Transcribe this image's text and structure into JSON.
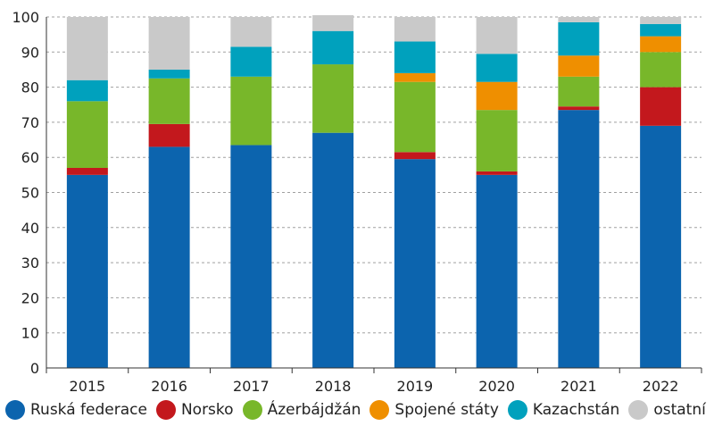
{
  "chart_data": {
    "type": "bar",
    "stacked": true,
    "categories": [
      "2015",
      "2016",
      "2017",
      "2018",
      "2019",
      "2020",
      "2021",
      "2022"
    ],
    "ylim": [
      0,
      100
    ],
    "yticks": [
      0,
      10,
      20,
      30,
      40,
      50,
      60,
      70,
      80,
      90,
      100
    ],
    "grid": "horizontal-dashed",
    "legend_position": "bottom",
    "series": [
      {
        "name": "Ruská federace",
        "color": "#0c64ae",
        "values": [
          55,
          63,
          63.5,
          67,
          59.5,
          55,
          73.5,
          69
        ]
      },
      {
        "name": "Norsko",
        "color": "#c3181d",
        "values": [
          2,
          6.5,
          0,
          0,
          2,
          1,
          1,
          11
        ]
      },
      {
        "name": "Ázerbájdžán",
        "color": "#78b72a",
        "values": [
          19,
          13,
          19.5,
          19.5,
          20,
          17.5,
          8.5,
          10
        ]
      },
      {
        "name": "Spojené státy",
        "color": "#ef8f00",
        "values": [
          0,
          0,
          0,
          0,
          2.5,
          8,
          6,
          4.5
        ]
      },
      {
        "name": "Kazachstán",
        "color": "#00a1bd",
        "values": [
          6,
          2.5,
          8.5,
          9.5,
          9,
          8,
          9.5,
          3.5
        ]
      },
      {
        "name": "ostatní",
        "color": "#c9c9c9",
        "values": [
          18,
          15,
          8.5,
          4.5,
          7,
          10.5,
          1.5,
          2
        ]
      }
    ]
  }
}
